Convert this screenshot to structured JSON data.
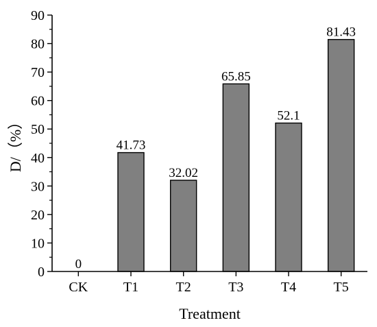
{
  "chart_data": {
    "type": "bar",
    "categories": [
      "CK",
      "T1",
      "T2",
      "T3",
      "T4",
      "T5"
    ],
    "values": [
      0,
      41.73,
      32.02,
      65.85,
      52.1,
      81.43
    ],
    "data_labels": [
      "0",
      "41.73",
      "32.02",
      "65.85",
      "52.1",
      "81.43"
    ],
    "title": "",
    "xlabel": "Treatment",
    "ylabel": "D/（%）",
    "ylim": [
      0,
      90
    ],
    "yticks": [
      "0",
      "10",
      "20",
      "30",
      "40",
      "50",
      "60",
      "70",
      "80",
      "90"
    ],
    "grid": false,
    "legend": "none",
    "bar_color": "#808080",
    "bar_edge_color": "#000000"
  }
}
